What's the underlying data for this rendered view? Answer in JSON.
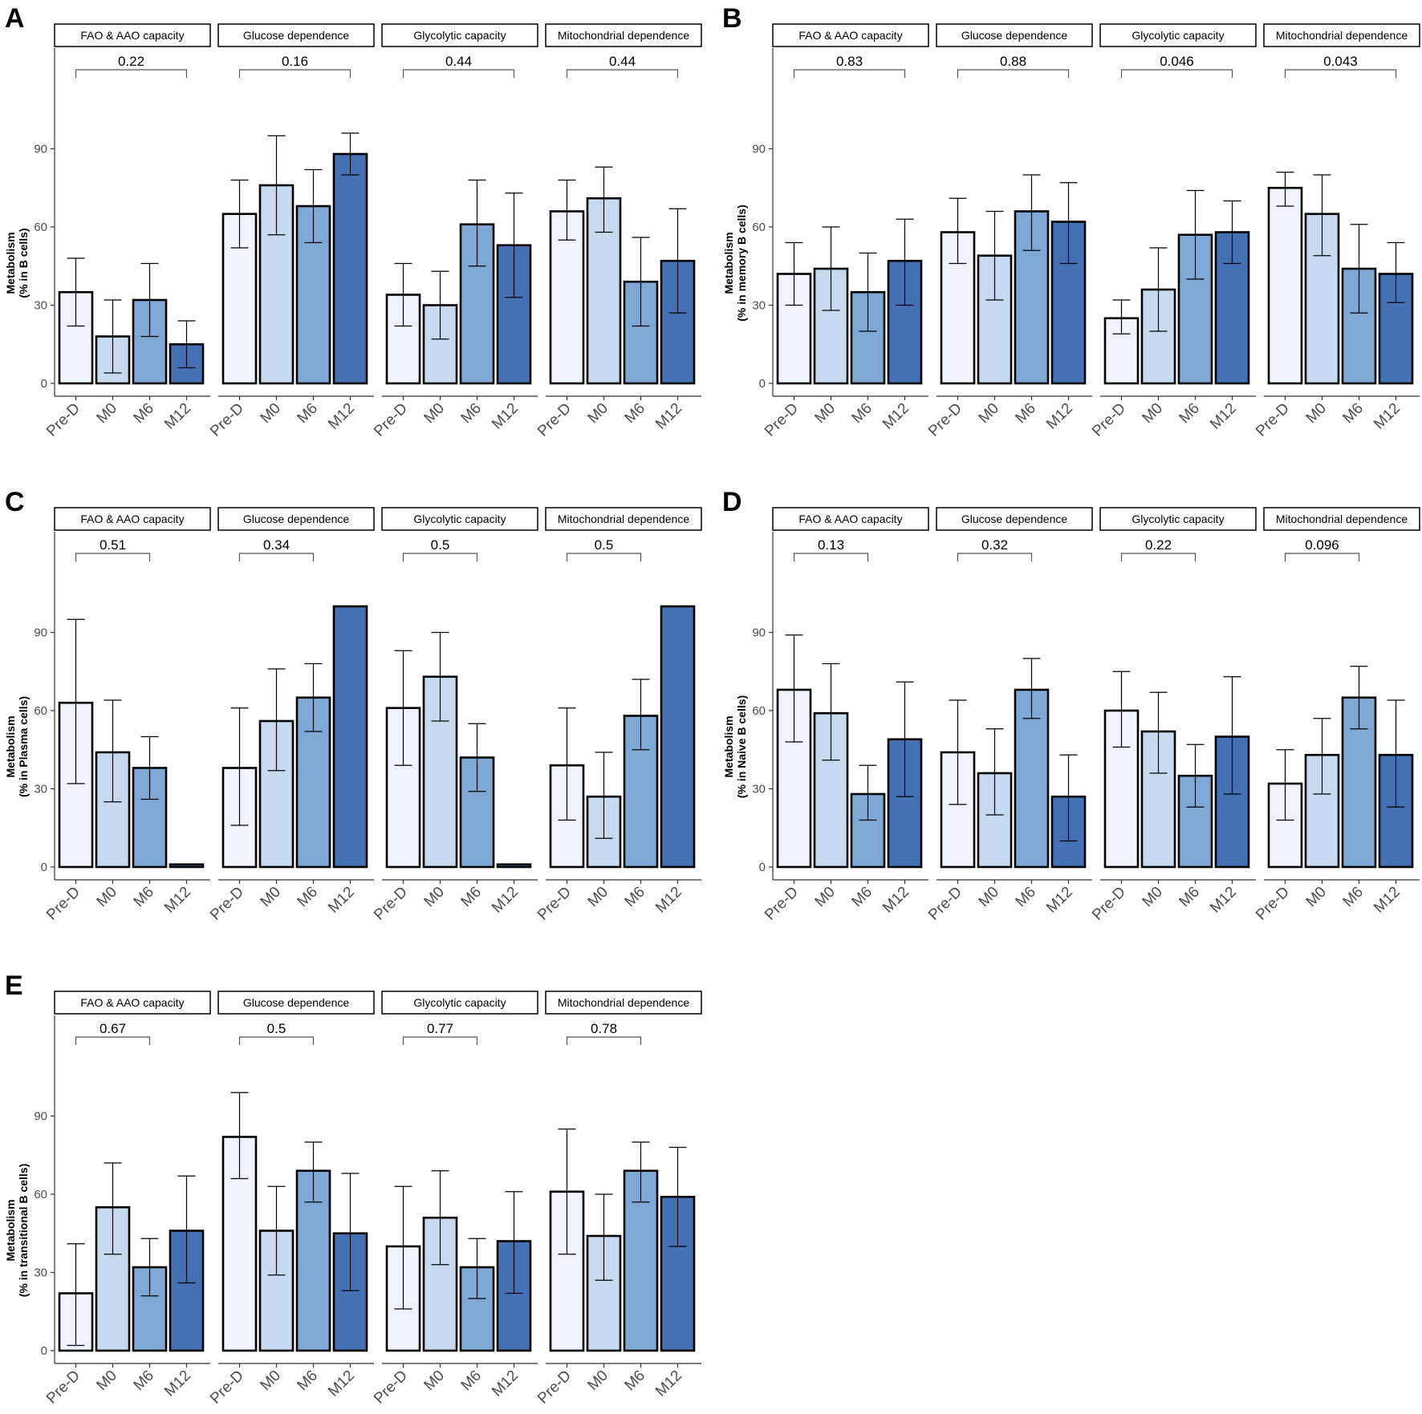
{
  "colors": {
    "Pre-D": "#eff3ff",
    "M0": "#c6dbef",
    "M6": "#7ea9d6",
    "M12": "#4470b4",
    "outline": "#000000",
    "axis": "#333333",
    "bracket": "#555555"
  },
  "chart_data": [
    {
      "type": "bar",
      "panel": "A",
      "ylabel_line1": "Metabolism",
      "ylabel_line2": "(% in B cells)",
      "ylim": [
        0,
        120
      ],
      "yticks": [
        "0",
        "30",
        "60",
        "90"
      ],
      "categories": [
        "Pre-D",
        "M0",
        "M6",
        "M12"
      ],
      "facets": [
        {
          "title": "FAO & AAO capacity",
          "pvalue": "0.22",
          "bracket_to": "M12",
          "values": [
            35,
            18,
            32,
            15
          ],
          "errors": [
            [
              22,
              48
            ],
            [
              4,
              32
            ],
            [
              18,
              46
            ],
            [
              6,
              24
            ]
          ]
        },
        {
          "title": "Glucose dependence",
          "pvalue": "0.16",
          "bracket_to": "M12",
          "values": [
            65,
            76,
            68,
            88
          ],
          "errors": [
            [
              52,
              78
            ],
            [
              57,
              95
            ],
            [
              54,
              82
            ],
            [
              80,
              96
            ]
          ]
        },
        {
          "title": "Glycolytic capacity",
          "pvalue": "0.44",
          "bracket_to": "M12",
          "values": [
            34,
            30,
            61,
            53
          ],
          "errors": [
            [
              22,
              46
            ],
            [
              17,
              43
            ],
            [
              45,
              78
            ],
            [
              33,
              73
            ]
          ]
        },
        {
          "title": "Mitochondrial dependence",
          "pvalue": "0.44",
          "bracket_to": "M12",
          "values": [
            66,
            71,
            39,
            47
          ],
          "errors": [
            [
              55,
              78
            ],
            [
              58,
              83
            ],
            [
              22,
              56
            ],
            [
              27,
              67
            ]
          ]
        }
      ]
    },
    {
      "type": "bar",
      "panel": "B",
      "ylabel_line1": "Metabolism",
      "ylabel_line2": "(% in memory B cells)",
      "ylim": [
        0,
        120
      ],
      "yticks": [
        "0",
        "30",
        "60",
        "90"
      ],
      "categories": [
        "Pre-D",
        "M0",
        "M6",
        "M12"
      ],
      "facets": [
        {
          "title": "FAO & AAO capacity",
          "pvalue": "0.83",
          "bracket_to": "M12",
          "values": [
            42,
            44,
            35,
            47
          ],
          "errors": [
            [
              30,
              54
            ],
            [
              28,
              60
            ],
            [
              20,
              50
            ],
            [
              30,
              63
            ]
          ]
        },
        {
          "title": "Glucose dependence",
          "pvalue": "0.88",
          "bracket_to": "M12",
          "values": [
            58,
            49,
            66,
            62
          ],
          "errors": [
            [
              46,
              71
            ],
            [
              32,
              66
            ],
            [
              51,
              80
            ],
            [
              46,
              77
            ]
          ]
        },
        {
          "title": "Glycolytic capacity",
          "pvalue": "0.046",
          "bracket_to": "M12",
          "values": [
            25,
            36,
            57,
            58
          ],
          "errors": [
            [
              19,
              32
            ],
            [
              20,
              52
            ],
            [
              40,
              74
            ],
            [
              46,
              70
            ]
          ]
        },
        {
          "title": "Mitochondrial dependence",
          "pvalue": "0.043",
          "bracket_to": "M12",
          "values": [
            75,
            65,
            44,
            42
          ],
          "errors": [
            [
              68,
              81
            ],
            [
              49,
              80
            ],
            [
              27,
              61
            ],
            [
              31,
              54
            ]
          ]
        }
      ]
    },
    {
      "type": "bar",
      "panel": "C",
      "ylabel_line1": "Metabolism",
      "ylabel_line2": "(% in Plasma cells)",
      "ylim": [
        0,
        120
      ],
      "yticks": [
        "0",
        "30",
        "60",
        "90"
      ],
      "categories": [
        "Pre-D",
        "M0",
        "M6",
        "M12"
      ],
      "facets": [
        {
          "title": "FAO & AAO capacity",
          "pvalue": "0.51",
          "bracket_to": "M6",
          "values": [
            63,
            44,
            38,
            1
          ],
          "errors": [
            [
              32,
              95
            ],
            [
              25,
              64
            ],
            [
              26,
              50
            ],
            null
          ]
        },
        {
          "title": "Glucose dependence",
          "pvalue": "0.34",
          "bracket_to": "M6",
          "values": [
            38,
            56,
            65,
            100
          ],
          "errors": [
            [
              16,
              61
            ],
            [
              37,
              76
            ],
            [
              52,
              78
            ],
            null
          ]
        },
        {
          "title": "Glycolytic capacity",
          "pvalue": "0.5",
          "bracket_to": "M6",
          "values": [
            61,
            73,
            42,
            1
          ],
          "errors": [
            [
              39,
              83
            ],
            [
              56,
              90
            ],
            [
              29,
              55
            ],
            null
          ]
        },
        {
          "title": "Mitochondrial dependence",
          "pvalue": "0.5",
          "bracket_to": "M6",
          "values": [
            39,
            27,
            58,
            100
          ],
          "errors": [
            [
              18,
              61
            ],
            [
              11,
              44
            ],
            [
              45,
              72
            ],
            null
          ]
        }
      ]
    },
    {
      "type": "bar",
      "panel": "D",
      "ylabel_line1": "Metabolism",
      "ylabel_line2": "(% in Naive B cells)",
      "ylim": [
        0,
        120
      ],
      "yticks": [
        "0",
        "30",
        "60",
        "90"
      ],
      "categories": [
        "Pre-D",
        "M0",
        "M6",
        "M12"
      ],
      "facets": [
        {
          "title": "FAO & AAO capacity",
          "pvalue": "0.13",
          "bracket_to": "M6",
          "values": [
            68,
            59,
            28,
            49
          ],
          "errors": [
            [
              48,
              89
            ],
            [
              41,
              78
            ],
            [
              18,
              39
            ],
            [
              27,
              71
            ]
          ]
        },
        {
          "title": "Glucose dependence",
          "pvalue": "0.32",
          "bracket_to": "M6",
          "values": [
            44,
            36,
            68,
            27
          ],
          "errors": [
            [
              24,
              64
            ],
            [
              20,
              53
            ],
            [
              57,
              80
            ],
            [
              10,
              43
            ]
          ]
        },
        {
          "title": "Glycolytic capacity",
          "pvalue": "0.22",
          "bracket_to": "M6",
          "values": [
            60,
            52,
            35,
            50
          ],
          "errors": [
            [
              46,
              75
            ],
            [
              36,
              67
            ],
            [
              23,
              47
            ],
            [
              28,
              73
            ]
          ]
        },
        {
          "title": "Mitochondrial dependence",
          "pvalue": "0.096",
          "bracket_to": "M6",
          "values": [
            32,
            43,
            65,
            43
          ],
          "errors": [
            [
              18,
              45
            ],
            [
              28,
              57
            ],
            [
              53,
              77
            ],
            [
              23,
              64
            ]
          ]
        }
      ]
    },
    {
      "type": "bar",
      "panel": "E",
      "ylabel_line1": "Metabolism",
      "ylabel_line2": "(% in transitional B cells)",
      "ylim": [
        0,
        120
      ],
      "yticks": [
        "0",
        "30",
        "60",
        "90"
      ],
      "categories": [
        "Pre-D",
        "M0",
        "M6",
        "M12"
      ],
      "facets": [
        {
          "title": "FAO & AAO capacity",
          "pvalue": "0.67",
          "bracket_to": "M6",
          "values": [
            22,
            55,
            32,
            46
          ],
          "errors": [
            [
              2,
              41
            ],
            [
              37,
              72
            ],
            [
              21,
              43
            ],
            [
              26,
              67
            ]
          ]
        },
        {
          "title": "Glucose dependence",
          "pvalue": "0.5",
          "bracket_to": "M6",
          "values": [
            82,
            46,
            69,
            45
          ],
          "errors": [
            [
              66,
              99
            ],
            [
              29,
              63
            ],
            [
              57,
              80
            ],
            [
              23,
              68
            ]
          ]
        },
        {
          "title": "Glycolytic capacity",
          "pvalue": "0.77",
          "bracket_to": "M6",
          "values": [
            40,
            51,
            32,
            42
          ],
          "errors": [
            [
              16,
              63
            ],
            [
              33,
              69
            ],
            [
              20,
              43
            ],
            [
              22,
              61
            ]
          ]
        },
        {
          "title": "Mitochondrial dependence",
          "pvalue": "0.78",
          "bracket_to": "M6",
          "values": [
            61,
            44,
            69,
            59
          ],
          "errors": [
            [
              37,
              85
            ],
            [
              27,
              60
            ],
            [
              57,
              80
            ],
            [
              40,
              78
            ]
          ]
        }
      ]
    }
  ]
}
